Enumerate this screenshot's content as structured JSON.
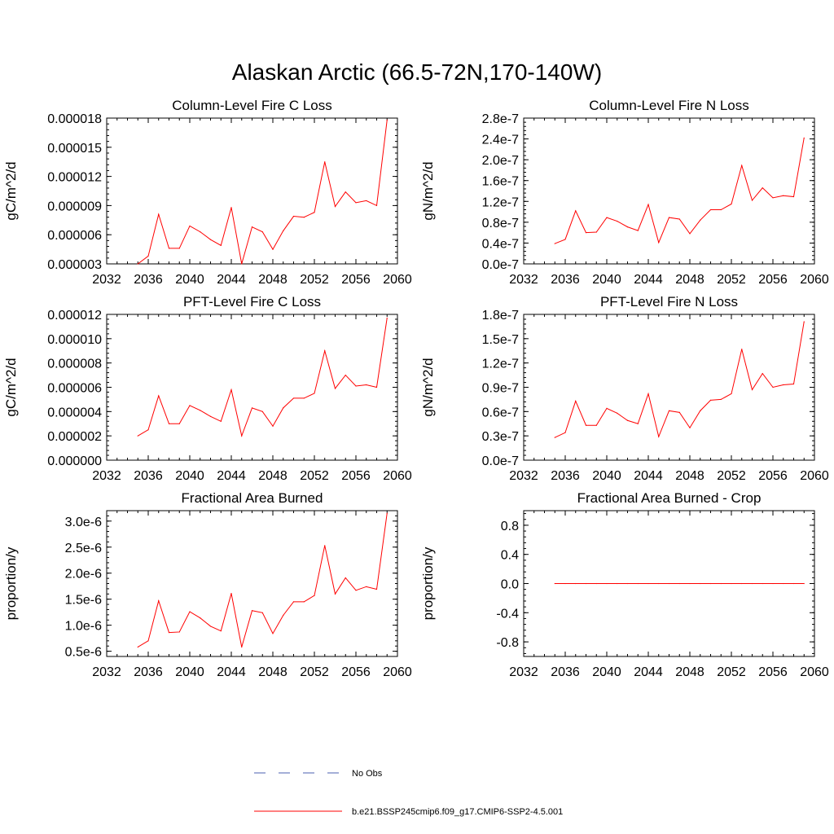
{
  "figure": {
    "title": "Alaskan Arctic (66.5-72N,170-140W)"
  },
  "colors": {
    "model": "#ff0000",
    "obs": "#4a5fb0",
    "axis": "#000000"
  },
  "legend": [
    {
      "label": "No Obs",
      "style": "dashed",
      "color": "#4a5fb0"
    },
    {
      "label": "b.e21.BSSP245cmip6.f09_g17.CMIP6-SSP2-4.5.001",
      "style": "solid",
      "color": "#ff0000"
    }
  ],
  "chart_data": [
    {
      "type": "line",
      "title": "Column-Level Fire C Loss",
      "ylabel": "gC/m^2/d",
      "xlim": [
        2032,
        2060
      ],
      "xticks": [
        "2032",
        "2036",
        "2040",
        "2044",
        "2048",
        "2052",
        "2056",
        "2060"
      ],
      "xtick_values": [
        2032,
        2036,
        2040,
        2044,
        2048,
        2052,
        2056,
        2060
      ],
      "ylim": [
        3e-06,
        1.8e-05
      ],
      "yticks": [
        "0.000003",
        "0.000006",
        "0.000009",
        "0.000012",
        "0.000015",
        "0.000018"
      ],
      "ytick_values": [
        3e-06,
        6e-06,
        9e-06,
        1.2e-05,
        1.5e-05,
        1.8e-05
      ],
      "x": [
        2035,
        2036,
        2037,
        2038,
        2039,
        2040,
        2041,
        2042,
        2043,
        2044,
        2045,
        2046,
        2047,
        2048,
        2049,
        2050,
        2051,
        2052,
        2053,
        2054,
        2055,
        2056,
        2057,
        2058,
        2059
      ],
      "series": [
        {
          "values": [
            3e-06,
            3.8e-06,
            8.1e-06,
            4.6e-06,
            4.6e-06,
            6.9e-06,
            6.3e-06,
            5.5e-06,
            4.9e-06,
            8.8e-06,
            3e-06,
            6.8e-06,
            6.3e-06,
            4.5e-06,
            6.4e-06,
            7.9e-06,
            7.8e-06,
            8.3e-06,
            1.35e-05,
            8.9e-06,
            1.04e-05,
            9.3e-06,
            9.5e-06,
            9e-06,
            1.78e-05
          ]
        }
      ]
    },
    {
      "type": "line",
      "title": "Column-Level Fire N Loss",
      "ylabel": "gN/m^2/d",
      "xlim": [
        2032,
        2060
      ],
      "xticks": [
        "2032",
        "2036",
        "2040",
        "2044",
        "2048",
        "2052",
        "2056",
        "2060"
      ],
      "xtick_values": [
        2032,
        2036,
        2040,
        2044,
        2048,
        2052,
        2056,
        2060
      ],
      "ylim": [
        0,
        2.8e-07
      ],
      "yticks": [
        "0.0e-7",
        "0.4e-7",
        "0.8e-7",
        "1.2e-7",
        "1.6e-7",
        "2.0e-7",
        "2.4e-7",
        "2.8e-7"
      ],
      "ytick_values": [
        0,
        4e-08,
        8e-08,
        1.2e-07,
        1.6e-07,
        2e-07,
        2.4e-07,
        2.8e-07
      ],
      "x": [
        2035,
        2036,
        2037,
        2038,
        2039,
        2040,
        2041,
        2042,
        2043,
        2044,
        2045,
        2046,
        2047,
        2048,
        2049,
        2050,
        2051,
        2052,
        2053,
        2054,
        2055,
        2056,
        2057,
        2058,
        2059
      ],
      "series": [
        {
          "values": [
            3.9e-08,
            4.7e-08,
            1.02e-07,
            6e-08,
            6.1e-08,
            8.9e-08,
            8.2e-08,
            7.1e-08,
            6.4e-08,
            1.14e-07,
            4.1e-08,
            8.9e-08,
            8.6e-08,
            5.8e-08,
            8.4e-08,
            1.04e-07,
            1.04e-07,
            1.15e-07,
            1.89e-07,
            1.22e-07,
            1.46e-07,
            1.27e-07,
            1.31e-07,
            1.29e-07,
            2.42e-07
          ]
        }
      ]
    },
    {
      "type": "line",
      "title": "PFT-Level Fire C Loss",
      "ylabel": "gC/m^2/d",
      "xlim": [
        2032,
        2060
      ],
      "xticks": [
        "2032",
        "2036",
        "2040",
        "2044",
        "2048",
        "2052",
        "2056",
        "2060"
      ],
      "xtick_values": [
        2032,
        2036,
        2040,
        2044,
        2048,
        2052,
        2056,
        2060
      ],
      "ylim": [
        0,
        1.2e-05
      ],
      "yticks": [
        "0.000000",
        "0.000002",
        "0.000004",
        "0.000006",
        "0.000008",
        "0.000010",
        "0.000012"
      ],
      "ytick_values": [
        0,
        2e-06,
        4e-06,
        6e-06,
        8e-06,
        1e-05,
        1.2e-05
      ],
      "x": [
        2035,
        2036,
        2037,
        2038,
        2039,
        2040,
        2041,
        2042,
        2043,
        2044,
        2045,
        2046,
        2047,
        2048,
        2049,
        2050,
        2051,
        2052,
        2053,
        2054,
        2055,
        2056,
        2057,
        2058,
        2059
      ],
      "series": [
        {
          "values": [
            2e-06,
            2.5e-06,
            5.3e-06,
            3e-06,
            3e-06,
            4.5e-06,
            4.1e-06,
            3.6e-06,
            3.2e-06,
            5.8e-06,
            2e-06,
            4.3e-06,
            4e-06,
            2.8e-06,
            4.3e-06,
            5.1e-06,
            5.1e-06,
            5.5e-06,
            9e-06,
            5.9e-06,
            7e-06,
            6.1e-06,
            6.2e-06,
            6e-06,
            1.17e-05
          ]
        }
      ]
    },
    {
      "type": "line",
      "title": "PFT-Level Fire N Loss",
      "ylabel": "gN/m^2/d",
      "xlim": [
        2032,
        2060
      ],
      "xticks": [
        "2032",
        "2036",
        "2040",
        "2044",
        "2048",
        "2052",
        "2056",
        "2060"
      ],
      "xtick_values": [
        2032,
        2036,
        2040,
        2044,
        2048,
        2052,
        2056,
        2060
      ],
      "ylim": [
        0,
        1.8e-07
      ],
      "yticks": [
        "0.0e-7",
        "0.3e-7",
        "0.6e-7",
        "0.9e-7",
        "1.2e-7",
        "1.5e-7",
        "1.8e-7"
      ],
      "ytick_values": [
        0,
        3e-08,
        6e-08,
        9e-08,
        1.2e-07,
        1.5e-07,
        1.8e-07
      ],
      "x": [
        2035,
        2036,
        2037,
        2038,
        2039,
        2040,
        2041,
        2042,
        2043,
        2044,
        2045,
        2046,
        2047,
        2048,
        2049,
        2050,
        2051,
        2052,
        2053,
        2054,
        2055,
        2056,
        2057,
        2058,
        2059
      ],
      "series": [
        {
          "values": [
            2.8e-08,
            3.4e-08,
            7.3e-08,
            4.3e-08,
            4.3e-08,
            6.4e-08,
            5.8e-08,
            4.9e-08,
            4.5e-08,
            8.2e-08,
            2.9e-08,
            6.1e-08,
            5.9e-08,
            4e-08,
            6.1e-08,
            7.4e-08,
            7.5e-08,
            8.2e-08,
            1.37e-07,
            8.7e-08,
            1.07e-07,
            9e-08,
            9.3e-08,
            9.4e-08,
            1.71e-07
          ]
        }
      ]
    },
    {
      "type": "line",
      "title": "Fractional Area Burned",
      "ylabel": "proportion/y",
      "xlim": [
        2032,
        2060
      ],
      "xticks": [
        "2032",
        "2036",
        "2040",
        "2044",
        "2048",
        "2052",
        "2056",
        "2060"
      ],
      "xtick_values": [
        2032,
        2036,
        2040,
        2044,
        2048,
        2052,
        2056,
        2060
      ],
      "ylim": [
        4e-07,
        3.2e-06
      ],
      "yticks": [
        "0.5e-6",
        "1.0e-6",
        "1.5e-6",
        "2.0e-6",
        "2.5e-6",
        "3.0e-6"
      ],
      "ytick_values": [
        5e-07,
        1e-06,
        1.5e-06,
        2e-06,
        2.5e-06,
        3e-06
      ],
      "x": [
        2035,
        2036,
        2037,
        2038,
        2039,
        2040,
        2041,
        2042,
        2043,
        2044,
        2045,
        2046,
        2047,
        2048,
        2049,
        2050,
        2051,
        2052,
        2053,
        2054,
        2055,
        2056,
        2057,
        2058,
        2059
      ],
      "series": [
        {
          "values": [
            5.8e-07,
            7e-07,
            1.47e-06,
            8.6e-07,
            8.7e-07,
            1.26e-06,
            1.14e-06,
            9.8e-07,
            8.9e-07,
            1.61e-06,
            5.8e-07,
            1.28e-06,
            1.24e-06,
            8.4e-07,
            1.19e-06,
            1.45e-06,
            1.45e-06,
            1.57e-06,
            2.53e-06,
            1.6e-06,
            1.91e-06,
            1.67e-06,
            1.74e-06,
            1.69e-06,
            3.15e-06
          ]
        }
      ]
    },
    {
      "type": "line",
      "title": "Fractional Area Burned - Crop",
      "ylabel": "proportion/y",
      "xlim": [
        2032,
        2060
      ],
      "xticks": [
        "2032",
        "2036",
        "2040",
        "2044",
        "2048",
        "2052",
        "2056",
        "2060"
      ],
      "xtick_values": [
        2032,
        2036,
        2040,
        2044,
        2048,
        2052,
        2056,
        2060
      ],
      "ylim": [
        -1.0,
        1.0
      ],
      "yticks": [
        "-0.8",
        "-0.4",
        "0.0",
        "0.4",
        "0.8"
      ],
      "ytick_values": [
        -0.8,
        -0.4,
        0.0,
        0.4,
        0.8
      ],
      "x": [
        2035,
        2036,
        2037,
        2038,
        2039,
        2040,
        2041,
        2042,
        2043,
        2044,
        2045,
        2046,
        2047,
        2048,
        2049,
        2050,
        2051,
        2052,
        2053,
        2054,
        2055,
        2056,
        2057,
        2058,
        2059
      ],
      "series": [
        {
          "values": [
            0,
            0,
            0,
            0,
            0,
            0,
            0,
            0,
            0,
            0,
            0,
            0,
            0,
            0,
            0,
            0,
            0,
            0,
            0,
            0,
            0,
            0,
            0,
            0,
            0
          ]
        }
      ]
    }
  ]
}
